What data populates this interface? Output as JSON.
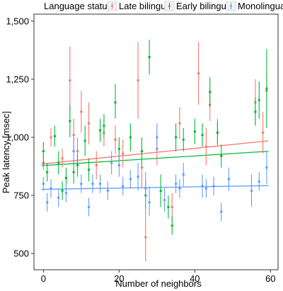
{
  "chart_data": {
    "type": "scatter",
    "title": "",
    "xlabel": "Number of neighbors",
    "ylabel": "Peak latency [msec]",
    "xlim": [
      -2.5,
      62
    ],
    "ylim": [
      430,
      1530
    ],
    "xticks": [
      0,
      20,
      40,
      60
    ],
    "yticks": [
      500,
      750,
      1000,
      1250,
      1500
    ],
    "grid": false,
    "legend": {
      "title": "Language status",
      "position": "top"
    },
    "series": [
      {
        "name": "Late bilingual",
        "color": "#F8766D",
        "fit": {
          "x0": -0.5,
          "y0": 885,
          "x1": 59.5,
          "y1": 985
        },
        "points": [
          {
            "x": 0,
            "y": 890,
            "lo": 860,
            "hi": 920
          },
          {
            "x": 2,
            "y": 1000,
            "lo": 960,
            "hi": 1040
          },
          {
            "x": 5,
            "y": 910,
            "lo": 870,
            "hi": 950
          },
          {
            "x": 7,
            "y": 1245,
            "lo": 1100,
            "hi": 1390
          },
          {
            "x": 8,
            "y": 1010,
            "lo": 940,
            "hi": 1080
          },
          {
            "x": 9,
            "y": 940,
            "lo": 880,
            "hi": 1000
          },
          {
            "x": 10,
            "y": 1110,
            "lo": 1020,
            "hi": 1200
          },
          {
            "x": 12,
            "y": 1060,
            "lo": 970,
            "hi": 1150
          },
          {
            "x": 14,
            "y": 880,
            "lo": 820,
            "hi": 940
          },
          {
            "x": 16,
            "y": 1020,
            "lo": 960,
            "hi": 1080
          },
          {
            "x": 19,
            "y": 990,
            "lo": 930,
            "hi": 1050
          },
          {
            "x": 21,
            "y": 930,
            "lo": 870,
            "hi": 990
          },
          {
            "x": 25,
            "y": 1245,
            "lo": 1080,
            "hi": 1410
          },
          {
            "x": 26,
            "y": 870,
            "lo": 780,
            "hi": 960
          },
          {
            "x": 27,
            "y": 570,
            "lo": 465,
            "hi": 690
          },
          {
            "x": 30,
            "y": 950,
            "lo": 880,
            "hi": 1020
          },
          {
            "x": 34,
            "y": 700,
            "lo": 640,
            "hi": 760
          },
          {
            "x": 36,
            "y": 1060,
            "lo": 990,
            "hi": 1130
          },
          {
            "x": 41,
            "y": 1275,
            "lo": 1140,
            "hi": 1410
          },
          {
            "x": 43,
            "y": 960,
            "lo": 880,
            "hi": 1040
          },
          {
            "x": 44,
            "y": 1140,
            "lo": 1070,
            "hi": 1210
          },
          {
            "x": 46,
            "y": 1020,
            "lo": 960,
            "hi": 1080
          },
          {
            "x": 56,
            "y": 1150,
            "lo": 1050,
            "hi": 1250
          },
          {
            "x": 58,
            "y": 1020,
            "lo": 930,
            "hi": 1110
          },
          {
            "x": 59,
            "y": 1200,
            "lo": 1100,
            "hi": 1300
          }
        ]
      },
      {
        "name": "Early bilingual",
        "color": "#00BA38",
        "fit": {
          "x0": -0.5,
          "y0": 878,
          "x1": 59.5,
          "y1": 940
        },
        "points": [
          {
            "x": 0,
            "y": 940,
            "lo": 880,
            "hi": 980
          },
          {
            "x": 1,
            "y": 850,
            "lo": 810,
            "hi": 890
          },
          {
            "x": 3,
            "y": 1005,
            "lo": 960,
            "hi": 1050
          },
          {
            "x": 4,
            "y": 890,
            "lo": 840,
            "hi": 940
          },
          {
            "x": 5,
            "y": 770,
            "lo": 730,
            "hi": 810
          },
          {
            "x": 6,
            "y": 825,
            "lo": 780,
            "hi": 870
          },
          {
            "x": 7,
            "y": 1070,
            "lo": 1000,
            "hi": 1140
          },
          {
            "x": 8,
            "y": 850,
            "lo": 800,
            "hi": 900
          },
          {
            "x": 9,
            "y": 880,
            "lo": 830,
            "hi": 930
          },
          {
            "x": 11,
            "y": 985,
            "lo": 920,
            "hi": 1050
          },
          {
            "x": 12,
            "y": 860,
            "lo": 810,
            "hi": 910
          },
          {
            "x": 15,
            "y": 1030,
            "lo": 980,
            "hi": 1080
          },
          {
            "x": 16,
            "y": 1050,
            "lo": 1000,
            "hi": 1100
          },
          {
            "x": 19,
            "y": 1150,
            "lo": 1080,
            "hi": 1230
          },
          {
            "x": 20,
            "y": 950,
            "lo": 900,
            "hi": 1000
          },
          {
            "x": 23,
            "y": 1000,
            "lo": 940,
            "hi": 1060
          },
          {
            "x": 26,
            "y": 940,
            "lo": 880,
            "hi": 1000
          },
          {
            "x": 27,
            "y": 750,
            "lo": 690,
            "hi": 810
          },
          {
            "x": 28,
            "y": 1345,
            "lo": 1270,
            "hi": 1420
          },
          {
            "x": 31,
            "y": 770,
            "lo": 700,
            "hi": 840
          },
          {
            "x": 33,
            "y": 700,
            "lo": 650,
            "hi": 750
          },
          {
            "x": 34,
            "y": 620,
            "lo": 580,
            "hi": 660
          },
          {
            "x": 35,
            "y": 1000,
            "lo": 940,
            "hi": 1060
          },
          {
            "x": 37,
            "y": 990,
            "lo": 940,
            "hi": 1040
          },
          {
            "x": 40,
            "y": 1025,
            "lo": 970,
            "hi": 1080
          },
          {
            "x": 42,
            "y": 1010,
            "lo": 960,
            "hi": 1060
          },
          {
            "x": 44,
            "y": 1195,
            "lo": 1130,
            "hi": 1260
          },
          {
            "x": 46,
            "y": 1020,
            "lo": 970,
            "hi": 1070
          },
          {
            "x": 47,
            "y": 920,
            "lo": 870,
            "hi": 970
          },
          {
            "x": 56,
            "y": 1110,
            "lo": 1050,
            "hi": 1170
          },
          {
            "x": 57,
            "y": 1160,
            "lo": 1080,
            "hi": 1240
          },
          {
            "x": 59,
            "y": 1210,
            "lo": 1040,
            "hi": 1380
          }
        ]
      },
      {
        "name": "Monolingual",
        "color": "#619CFF",
        "fit": {
          "x0": -0.5,
          "y0": 776,
          "x1": 59.5,
          "y1": 792
        },
        "points": [
          {
            "x": 0,
            "y": 800,
            "lo": 770,
            "hi": 830
          },
          {
            "x": 1,
            "y": 720,
            "lo": 680,
            "hi": 760
          },
          {
            "x": 2,
            "y": 780,
            "lo": 740,
            "hi": 820
          },
          {
            "x": 4,
            "y": 740,
            "lo": 700,
            "hi": 780
          },
          {
            "x": 6,
            "y": 760,
            "lo": 720,
            "hi": 800
          },
          {
            "x": 8,
            "y": 940,
            "lo": 880,
            "hi": 1000
          },
          {
            "x": 10,
            "y": 800,
            "lo": 760,
            "hi": 840
          },
          {
            "x": 12,
            "y": 700,
            "lo": 660,
            "hi": 740
          },
          {
            "x": 13,
            "y": 800,
            "lo": 760,
            "hi": 840
          },
          {
            "x": 15,
            "y": 800,
            "lo": 760,
            "hi": 840
          },
          {
            "x": 17,
            "y": 770,
            "lo": 730,
            "hi": 810
          },
          {
            "x": 18,
            "y": 890,
            "lo": 840,
            "hi": 940
          },
          {
            "x": 20,
            "y": 880,
            "lo": 830,
            "hi": 930
          },
          {
            "x": 21,
            "y": 790,
            "lo": 750,
            "hi": 830
          },
          {
            "x": 23,
            "y": 820,
            "lo": 780,
            "hi": 860
          },
          {
            "x": 25,
            "y": 830,
            "lo": 770,
            "hi": 890
          },
          {
            "x": 27,
            "y": 780,
            "lo": 710,
            "hi": 850
          },
          {
            "x": 28,
            "y": 720,
            "lo": 660,
            "hi": 790
          },
          {
            "x": 30,
            "y": 1000,
            "lo": 940,
            "hi": 1060
          },
          {
            "x": 32,
            "y": 730,
            "lo": 680,
            "hi": 780
          },
          {
            "x": 35,
            "y": 800,
            "lo": 760,
            "hi": 840
          },
          {
            "x": 36,
            "y": 780,
            "lo": 740,
            "hi": 820
          },
          {
            "x": 37,
            "y": 840,
            "lo": 790,
            "hi": 890
          },
          {
            "x": 42,
            "y": 790,
            "lo": 740,
            "hi": 840
          },
          {
            "x": 43,
            "y": 780,
            "lo": 740,
            "hi": 820
          },
          {
            "x": 45,
            "y": 790,
            "lo": 750,
            "hi": 830
          },
          {
            "x": 47,
            "y": 680,
            "lo": 640,
            "hi": 720
          },
          {
            "x": 49,
            "y": 820,
            "lo": 770,
            "hi": 870
          },
          {
            "x": 55,
            "y": 770,
            "lo": 700,
            "hi": 840
          },
          {
            "x": 57,
            "y": 810,
            "lo": 770,
            "hi": 850
          },
          {
            "x": 59,
            "y": 870,
            "lo": 800,
            "hi": 940
          }
        ]
      }
    ]
  }
}
